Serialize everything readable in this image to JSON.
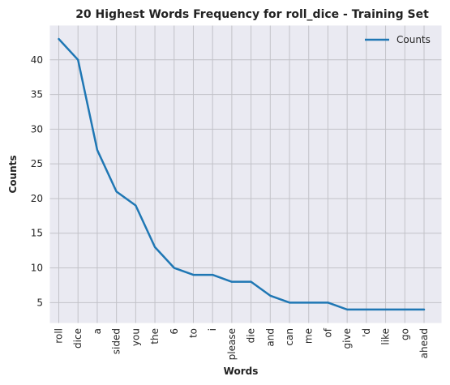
{
  "chart_data": {
    "type": "line",
    "title": "20 Highest Words Frequency for roll_dice - Training Set",
    "xlabel": "Words",
    "ylabel": "Counts",
    "categories": [
      "roll",
      "dice",
      "a",
      "sided",
      "you",
      "the",
      "6",
      "to",
      "i",
      "please",
      "die",
      "and",
      "can",
      "me",
      "of",
      "give",
      "'d",
      "like",
      "go",
      "ahead"
    ],
    "series": [
      {
        "name": "Counts",
        "values": [
          43,
          40,
          27,
          21,
          19,
          13,
          10,
          9,
          9,
          8,
          8,
          6,
          5,
          5,
          5,
          4,
          4,
          4,
          4,
          4
        ],
        "color": "#1f77b4"
      }
    ],
    "ylim": [
      2,
      45
    ],
    "yticks": [
      5,
      10,
      15,
      20,
      25,
      30,
      35,
      40
    ],
    "grid": true,
    "legend_position": "top-right",
    "plot_background": "#eaeaf2",
    "grid_color": "#c2c2c8"
  }
}
